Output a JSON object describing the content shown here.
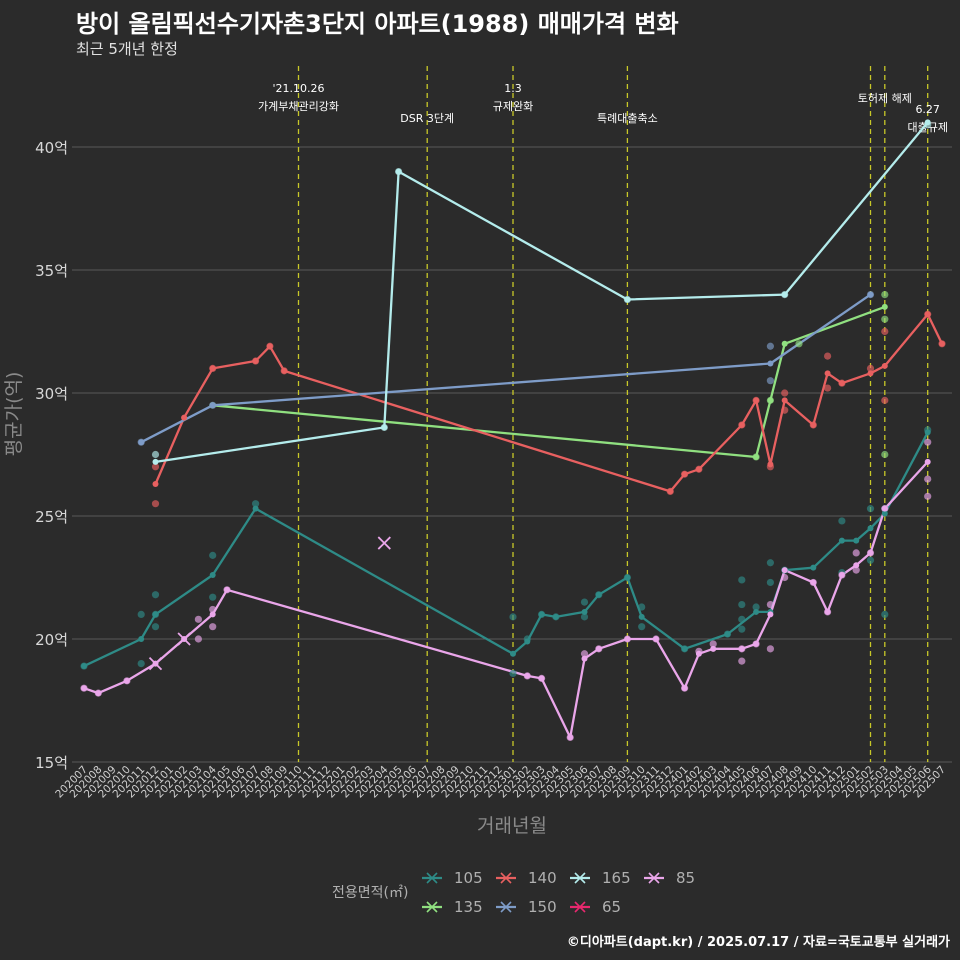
{
  "header": {
    "title": "방이 올림픽선수기자촌3단지 아파트(1988) 매매가격 변화",
    "subtitle": "최근 5개년 한정"
  },
  "caption": "©디아파트(dapt.kr) / 2025.07.17 / 자료=국토교통부 실거래가",
  "colors": {
    "background": "#2b2b2b",
    "grid": "#5a5a5a",
    "event_line": "#c8c828",
    "105": "#2e8b87",
    "135": "#90e080",
    "140": "#e86060",
    "150": "#7e9cc8",
    "165": "#b4ecec",
    "65": "#e8286e",
    "85": "#eaa6ea"
  },
  "chart_data": {
    "type": "line",
    "title": "방이 올림픽선수기자촌3단지 아파트(1988) 매매가격 변화",
    "subtitle": "최근 5개년 한정",
    "xlabel": "거래년월",
    "ylabel": "평균가(억)",
    "ylim": [
      15,
      42
    ],
    "y_ticks": [
      15,
      20,
      25,
      30,
      35,
      40
    ],
    "y_tick_labels": [
      "15억",
      "20억",
      "25억",
      "30억",
      "35억",
      "40억"
    ],
    "grid": "horizontal",
    "x_categories": [
      "202007",
      "202008",
      "202009",
      "202010",
      "202011",
      "202012",
      "202101",
      "202102",
      "202103",
      "202104",
      "202105",
      "202106",
      "202107",
      "202108",
      "202109",
      "202110",
      "202111",
      "202112",
      "202201",
      "202202",
      "202203",
      "202204",
      "202205",
      "202206",
      "202207",
      "202208",
      "202209",
      "202210",
      "202211",
      "202212",
      "202301",
      "202302",
      "202303",
      "202304",
      "202305",
      "202306",
      "202307",
      "202308",
      "202309",
      "202310",
      "202311",
      "202312",
      "202401",
      "202402",
      "202403",
      "202404",
      "202405",
      "202406",
      "202407",
      "202408",
      "202409",
      "202410",
      "202411",
      "202412",
      "202501",
      "202502",
      "202503",
      "202504",
      "202505",
      "202506",
      "202507"
    ],
    "legend": {
      "title": "전용면적(㎡)",
      "position": "bottom",
      "entries": [
        "105",
        "135",
        "140",
        "150",
        "165",
        "65",
        "85"
      ]
    },
    "events": [
      {
        "x": "202110",
        "label": "'21.10.26\n가계부채관리강화"
      },
      {
        "x": "202207",
        "label": "DSR 3단계"
      },
      {
        "x": "202301",
        "label": "1.3\n규제완화"
      },
      {
        "x": "202309",
        "label": "특례대출축소"
      },
      {
        "x": "202502",
        "label": ""
      },
      {
        "x": "202503",
        "label": "토허제 해제"
      },
      {
        "x": "202506",
        "label": "6.27\n대출규제"
      }
    ],
    "series": [
      {
        "name": "105",
        "points": [
          [
            "202007",
            18.9
          ],
          [
            "202011",
            20.0
          ],
          [
            "202012",
            21.0
          ],
          [
            "202104",
            22.6
          ],
          [
            "202107",
            25.3
          ],
          [
            "202301",
            19.4
          ],
          [
            "202302",
            19.9
          ],
          [
            "202303",
            21.0
          ],
          [
            "202304",
            20.9
          ],
          [
            "202306",
            21.1
          ],
          [
            "202307",
            21.8
          ],
          [
            "202309",
            22.5
          ],
          [
            "202310",
            20.9
          ],
          [
            "202401",
            19.6
          ],
          [
            "202404",
            20.2
          ],
          [
            "202406",
            21.1
          ],
          [
            "202407",
            21.1
          ],
          [
            "202408",
            22.8
          ],
          [
            "202410",
            22.9
          ],
          [
            "202412",
            24.0
          ],
          [
            "202501",
            24.0
          ],
          [
            "202502",
            24.5
          ],
          [
            "202503",
            25.1
          ],
          [
            "202506",
            28.4
          ]
        ]
      },
      {
        "name": "135",
        "points": [
          [
            "202104",
            29.5
          ],
          [
            "202406",
            27.4
          ],
          [
            "202407",
            29.7
          ],
          [
            "202408",
            32.0
          ],
          [
            "202503",
            33.5
          ]
        ]
      },
      {
        "name": "140",
        "points": [
          [
            "202012",
            26.3
          ],
          [
            "202102",
            29.0
          ],
          [
            "202104",
            31.0
          ],
          [
            "202107",
            31.3
          ],
          [
            "202108",
            31.9
          ],
          [
            "202109",
            30.9
          ],
          [
            "202312",
            26.0
          ],
          [
            "202401",
            26.7
          ],
          [
            "202402",
            26.9
          ],
          [
            "202405",
            28.7
          ],
          [
            "202406",
            29.7
          ],
          [
            "202407",
            27.1
          ],
          [
            "202408",
            29.7
          ],
          [
            "202410",
            28.7
          ],
          [
            "202411",
            30.8
          ],
          [
            "202412",
            30.4
          ],
          [
            "202502",
            30.8
          ],
          [
            "202503",
            31.1
          ],
          [
            "202506",
            33.2
          ],
          [
            "202507",
            32.0
          ]
        ]
      },
      {
        "name": "150",
        "points": [
          [
            "202011",
            28.0
          ],
          [
            "202104",
            29.5
          ],
          [
            "202407",
            31.2
          ],
          [
            "202502",
            34.0
          ]
        ]
      },
      {
        "name": "165",
        "points": [
          [
            "202012",
            27.2
          ],
          [
            "202204",
            28.6
          ],
          [
            "202205",
            39.0
          ],
          [
            "202309",
            33.8
          ],
          [
            "202408",
            34.0
          ],
          [
            "202506",
            41.0
          ]
        ]
      },
      {
        "name": "65",
        "points": []
      },
      {
        "name": "85",
        "points": [
          [
            "202007",
            18.0
          ],
          [
            "202008",
            17.8
          ],
          [
            "202010",
            18.3
          ],
          [
            "202012",
            19.0
          ],
          [
            "202102",
            20.0
          ],
          [
            "202104",
            21.0
          ],
          [
            "202105",
            22.0
          ],
          [
            "202302",
            18.5
          ],
          [
            "202303",
            18.4
          ],
          [
            "202305",
            16.0
          ],
          [
            "202306",
            19.2
          ],
          [
            "202307",
            19.6
          ],
          [
            "202309",
            20.0
          ],
          [
            "202311",
            20.0
          ],
          [
            "202401",
            18.0
          ],
          [
            "202402",
            19.4
          ],
          [
            "202403",
            19.6
          ],
          [
            "202405",
            19.6
          ],
          [
            "202406",
            19.8
          ],
          [
            "202407",
            21.0
          ],
          [
            "202408",
            22.8
          ],
          [
            "202410",
            22.3
          ],
          [
            "202411",
            21.1
          ],
          [
            "202412",
            22.6
          ],
          [
            "202501",
            23.0
          ],
          [
            "202502",
            23.5
          ],
          [
            "202503",
            25.3
          ],
          [
            "202506",
            27.2
          ]
        ]
      }
    ],
    "scatter": [
      {
        "series": "105",
        "x": "202007",
        "y": 18.9
      },
      {
        "series": "105",
        "x": "202011",
        "y": 21.0
      },
      {
        "series": "105",
        "x": "202011",
        "y": 19.0
      },
      {
        "series": "105",
        "x": "202012",
        "y": 21.8
      },
      {
        "series": "105",
        "x": "202012",
        "y": 20.5
      },
      {
        "series": "105",
        "x": "202012",
        "y": 21.0
      },
      {
        "series": "105",
        "x": "202104",
        "y": 23.4
      },
      {
        "series": "105",
        "x": "202104",
        "y": 21.7
      },
      {
        "series": "105",
        "x": "202107",
        "y": 25.5
      },
      {
        "series": "105",
        "x": "202301",
        "y": 20.9
      },
      {
        "series": "105",
        "x": "202301",
        "y": 18.6
      },
      {
        "series": "105",
        "x": "202302",
        "y": 20.0
      },
      {
        "series": "105",
        "x": "202303",
        "y": 21.0
      },
      {
        "series": "105",
        "x": "202304",
        "y": 20.9
      },
      {
        "series": "105",
        "x": "202306",
        "y": 21.5
      },
      {
        "series": "105",
        "x": "202306",
        "y": 20.9
      },
      {
        "series": "105",
        "x": "202307",
        "y": 21.8
      },
      {
        "series": "105",
        "x": "202309",
        "y": 22.5
      },
      {
        "series": "105",
        "x": "202310",
        "y": 21.3
      },
      {
        "series": "105",
        "x": "202310",
        "y": 20.5
      },
      {
        "series": "105",
        "x": "202401",
        "y": 19.6
      },
      {
        "series": "105",
        "x": "202404",
        "y": 20.2
      },
      {
        "series": "105",
        "x": "202405",
        "y": 22.4
      },
      {
        "series": "105",
        "x": "202405",
        "y": 21.4
      },
      {
        "series": "105",
        "x": "202405",
        "y": 20.8
      },
      {
        "series": "105",
        "x": "202405",
        "y": 20.4
      },
      {
        "series": "105",
        "x": "202406",
        "y": 21.3
      },
      {
        "series": "105",
        "x": "202407",
        "y": 23.1
      },
      {
        "series": "105",
        "x": "202407",
        "y": 22.3
      },
      {
        "series": "105",
        "x": "202408",
        "y": 22.8
      },
      {
        "series": "105",
        "x": "202412",
        "y": 24.8
      },
      {
        "series": "105",
        "x": "202412",
        "y": 22.7
      },
      {
        "series": "105",
        "x": "202502",
        "y": 25.3
      },
      {
        "series": "105",
        "x": "202502",
        "y": 23.2
      },
      {
        "series": "105",
        "x": "202503",
        "y": 21.0
      },
      {
        "series": "105",
        "x": "202503",
        "y": 25.3
      },
      {
        "series": "105",
        "x": "202506",
        "y": 28.5
      },
      {
        "series": "135",
        "x": "202406",
        "y": 27.4
      },
      {
        "series": "135",
        "x": "202407",
        "y": 29.7
      },
      {
        "series": "135",
        "x": "202409",
        "y": 32.0
      },
      {
        "series": "135",
        "x": "202503",
        "y": 34.0
      },
      {
        "series": "135",
        "x": "202503",
        "y": 33.0
      },
      {
        "series": "135",
        "x": "202503",
        "y": 27.5
      },
      {
        "series": "140",
        "x": "202012",
        "y": 25.5
      },
      {
        "series": "140",
        "x": "202012",
        "y": 27.0
      },
      {
        "series": "140",
        "x": "202104",
        "y": 31.0
      },
      {
        "series": "140",
        "x": "202107",
        "y": 31.3
      },
      {
        "series": "140",
        "x": "202108",
        "y": 31.9
      },
      {
        "series": "140",
        "x": "202109",
        "y": 30.9
      },
      {
        "series": "140",
        "x": "202312",
        "y": 26.0
      },
      {
        "series": "140",
        "x": "202401",
        "y": 26.7
      },
      {
        "series": "140",
        "x": "202402",
        "y": 26.9
      },
      {
        "series": "140",
        "x": "202405",
        "y": 28.7
      },
      {
        "series": "140",
        "x": "202406",
        "y": 29.7
      },
      {
        "series": "140",
        "x": "202407",
        "y": 27.0
      },
      {
        "series": "140",
        "x": "202408",
        "y": 30.0
      },
      {
        "series": "140",
        "x": "202408",
        "y": 29.3
      },
      {
        "series": "140",
        "x": "202410",
        "y": 28.7
      },
      {
        "series": "140",
        "x": "202411",
        "y": 31.5
      },
      {
        "series": "140",
        "x": "202411",
        "y": 30.2
      },
      {
        "series": "140",
        "x": "202412",
        "y": 30.4
      },
      {
        "series": "140",
        "x": "202502",
        "y": 31.0
      },
      {
        "series": "140",
        "x": "202503",
        "y": 32.5
      },
      {
        "series": "140",
        "x": "202503",
        "y": 29.7
      },
      {
        "series": "140",
        "x": "202506",
        "y": 33.2
      },
      {
        "series": "140",
        "x": "202507",
        "y": 32.0
      },
      {
        "series": "150",
        "x": "202011",
        "y": 28.0
      },
      {
        "series": "150",
        "x": "202104",
        "y": 29.5
      },
      {
        "series": "150",
        "x": "202407",
        "y": 31.9
      },
      {
        "series": "150",
        "x": "202407",
        "y": 30.5
      },
      {
        "series": "150",
        "x": "202502",
        "y": 34.0
      },
      {
        "series": "165",
        "x": "202012",
        "y": 27.5
      },
      {
        "series": "165",
        "x": "202204",
        "y": 28.6
      },
      {
        "series": "165",
        "x": "202205",
        "y": 39.0
      },
      {
        "series": "165",
        "x": "202309",
        "y": 33.8
      },
      {
        "series": "165",
        "x": "202408",
        "y": 34.0
      },
      {
        "series": "165",
        "x": "202506",
        "y": 40.9
      },
      {
        "series": "85",
        "x": "202007",
        "y": 18.0
      },
      {
        "series": "85",
        "x": "202008",
        "y": 17.8
      },
      {
        "series": "85",
        "x": "202010",
        "y": 18.3
      },
      {
        "series": "85",
        "x": "202103",
        "y": 20.8
      },
      {
        "series": "85",
        "x": "202103",
        "y": 20.0
      },
      {
        "series": "85",
        "x": "202104",
        "y": 21.2
      },
      {
        "series": "85",
        "x": "202104",
        "y": 20.5
      },
      {
        "series": "85",
        "x": "202105",
        "y": 22.0
      },
      {
        "series": "85",
        "x": "202302",
        "y": 18.5
      },
      {
        "series": "85",
        "x": "202303",
        "y": 18.4
      },
      {
        "series": "85",
        "x": "202305",
        "y": 16.0
      },
      {
        "series": "85",
        "x": "202306",
        "y": 19.4
      },
      {
        "series": "85",
        "x": "202307",
        "y": 19.6
      },
      {
        "series": "85",
        "x": "202309",
        "y": 20.0
      },
      {
        "series": "85",
        "x": "202311",
        "y": 20.0
      },
      {
        "series": "85",
        "x": "202401",
        "y": 18.0
      },
      {
        "series": "85",
        "x": "202402",
        "y": 19.5
      },
      {
        "series": "85",
        "x": "202403",
        "y": 19.8
      },
      {
        "series": "85",
        "x": "202405",
        "y": 19.6
      },
      {
        "series": "85",
        "x": "202405",
        "y": 19.1
      },
      {
        "series": "85",
        "x": "202406",
        "y": 19.8
      },
      {
        "series": "85",
        "x": "202407",
        "y": 21.4
      },
      {
        "series": "85",
        "x": "202407",
        "y": 19.6
      },
      {
        "series": "85",
        "x": "202408",
        "y": 22.5
      },
      {
        "series": "85",
        "x": "202410",
        "y": 22.3
      },
      {
        "series": "85",
        "x": "202411",
        "y": 21.1
      },
      {
        "series": "85",
        "x": "202412",
        "y": 22.6
      },
      {
        "series": "85",
        "x": "202501",
        "y": 23.5
      },
      {
        "series": "85",
        "x": "202501",
        "y": 22.8
      },
      {
        "series": "85",
        "x": "202502",
        "y": 23.5
      },
      {
        "series": "85",
        "x": "202503",
        "y": 25.3
      },
      {
        "series": "85",
        "x": "202506",
        "y": 28.0
      },
      {
        "series": "85",
        "x": "202506",
        "y": 26.5
      },
      {
        "series": "85",
        "x": "202506",
        "y": 25.8
      }
    ],
    "cancelled": [
      {
        "series": "85",
        "x": "202012",
        "y": 19.0
      },
      {
        "series": "85",
        "x": "202102",
        "y": 20.0
      },
      {
        "series": "85",
        "x": "202204",
        "y": 23.9
      }
    ]
  }
}
